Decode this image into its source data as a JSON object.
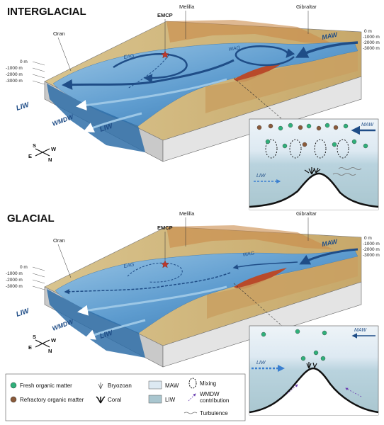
{
  "panels": {
    "interglacial": {
      "title": "INTERGLACIAL",
      "places": {
        "oran": "Oran",
        "melilla": "Melilla",
        "gibraltar": "Gibraltar",
        "emcp": "EMCP"
      },
      "depths": [
        "0 m",
        "-1000 m",
        "-2000 m",
        "-3000 m"
      ],
      "depths_right": [
        "0 m",
        "-1000 m",
        "-2000 m",
        "-3000 m"
      ],
      "currents": {
        "maw": "MAW",
        "eag": "EAG",
        "wag": "WAG",
        "liw_1": "LIW",
        "liw_2": "LIW",
        "wmdw": "WMDW"
      },
      "inset": {
        "maw": "MAW",
        "liw": "LIW"
      }
    },
    "glacial": {
      "title": "GLACIAL",
      "places": {
        "oran": "Oran",
        "melilla": "Melilla",
        "gibraltar": "Gibraltar",
        "emcp": "EMCP"
      },
      "depths": [
        "0 m",
        "-1000 m",
        "-2000 m",
        "-3000 m"
      ],
      "depths_right": [
        "0 m",
        "-1000 m",
        "-2000 m",
        "-3000 m"
      ],
      "currents": {
        "maw": "MAW",
        "eag": "EAG",
        "wag": "WAG",
        "liw_1": "LIW",
        "liw_2": "LIW",
        "wmdw": "WMDW"
      },
      "inset": {
        "maw": "MAW",
        "liw": "LIW"
      }
    }
  },
  "compass": {
    "s": "S",
    "w": "W",
    "e": "E",
    "n": "N"
  },
  "legend": {
    "fresh": "Fresh organic matter",
    "refractory": "Refractory organic matter",
    "bryozoan": "Bryozoan",
    "coral": "Coral",
    "maw": "MAW",
    "liw": "LIW",
    "mixing": "Mixing",
    "wmdw_contribution_1": "WMDW",
    "wmdw_contribution_2": "contribution",
    "turbulence": "Turbulence"
  },
  "colors": {
    "water_surface": "#6fa8d6",
    "water_deep": "#2f6fa8",
    "land_low": "#d9c48e",
    "land_high": "#c98a4a",
    "relief_red": "#b94a2a",
    "arrow_blue": "#1f4d87",
    "maw_inset": "#dde9f2",
    "liw_inset": "#a9c6cf",
    "fresh_om": "#2fb07a",
    "refractory_om": "#8a5a3a",
    "wmdw_arrow": "#6b3fb0",
    "emcp_star": "#c0392b"
  }
}
